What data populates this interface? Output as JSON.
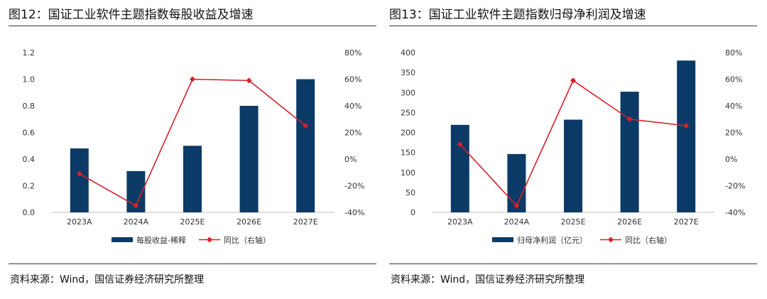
{
  "panels": [
    {
      "title": "图12：国证工业软件主题指数每股收益及增速",
      "source": "资料来源：Wind，国信证券经济研究所整理"
    },
    {
      "title": "图13：国证工业软件主题指数归母净利润及增速",
      "source": "资料来源：Wind，国信证券经济研究所整理"
    }
  ],
  "colors": {
    "bar": "#0b3a66",
    "line": "#d6202a",
    "axis": "#bfbfbf",
    "text": "#333333"
  },
  "chart_data": [
    {
      "type": "bar",
      "categories": [
        "2023A",
        "2024A",
        "2025E",
        "2026E",
        "2027E"
      ],
      "series": [
        {
          "name": "每股收益-稀释",
          "kind": "bar",
          "axis": "left",
          "values": [
            0.48,
            0.31,
            0.5,
            0.8,
            1.0
          ]
        },
        {
          "name": "同比（右轴）",
          "kind": "line",
          "axis": "right",
          "values": [
            -11,
            -35,
            60,
            59,
            25
          ]
        }
      ],
      "left_axis": {
        "min": 0,
        "max": 1.2,
        "ticks": [
          "0.0",
          "0.2",
          "0.4",
          "0.6",
          "0.8",
          "1.0",
          "1.2"
        ]
      },
      "right_axis": {
        "min": -40,
        "max": 80,
        "ticks": [
          "-40%",
          "-20%",
          "0%",
          "20%",
          "40%",
          "60%",
          "80%"
        ]
      },
      "legend": {
        "position": "bottom"
      }
    },
    {
      "type": "bar",
      "categories": [
        "2023A",
        "2024A",
        "2025E",
        "2026E",
        "2027E"
      ],
      "series": [
        {
          "name": "归母净利润（亿元）",
          "kind": "bar",
          "axis": "left",
          "values": [
            219,
            146,
            232,
            302,
            380
          ]
        },
        {
          "name": "同比（右轴）",
          "kind": "line",
          "axis": "right",
          "values": [
            11,
            -35,
            59,
            30,
            25
          ]
        }
      ],
      "left_axis": {
        "min": 0,
        "max": 400,
        "ticks": [
          "0",
          "50",
          "100",
          "150",
          "200",
          "250",
          "300",
          "350",
          "400"
        ]
      },
      "right_axis": {
        "min": -40,
        "max": 80,
        "ticks": [
          "-40%",
          "-20%",
          "0%",
          "20%",
          "40%",
          "60%",
          "80%"
        ]
      },
      "legend": {
        "position": "bottom"
      }
    }
  ]
}
